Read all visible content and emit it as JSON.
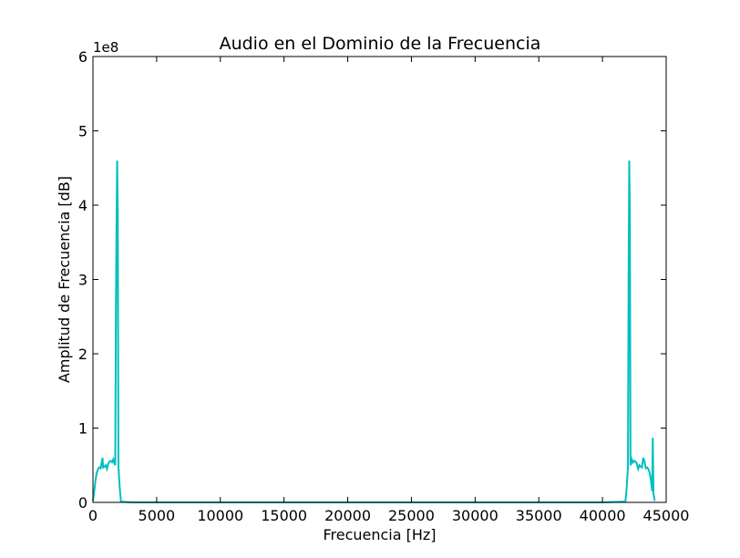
{
  "chart_data": {
    "type": "line",
    "title": "Audio en el Dominio de la Frecuencia",
    "xlabel": "Frecuencia [Hz]",
    "ylabel": "Amplitud de Frecuencia [dB]",
    "xlim": [
      0,
      45000
    ],
    "ylim": [
      0,
      6
    ],
    "y_multiplier_label": "1e8",
    "x_ticks": [
      0,
      5000,
      10000,
      15000,
      20000,
      25000,
      30000,
      35000,
      40000,
      45000
    ],
    "x_tick_labels": [
      "0",
      "5000",
      "10000",
      "15000",
      "20000",
      "25000",
      "30000",
      "35000",
      "40000",
      "45000"
    ],
    "y_ticks": [
      0,
      1,
      2,
      3,
      4,
      5,
      6
    ],
    "y_tick_labels": [
      "0",
      "1",
      "2",
      "3",
      "4",
      "5",
      "6"
    ],
    "grid": false,
    "line_color": "#00bfbf",
    "series": [
      {
        "x": [
          0,
          100,
          200,
          300,
          400,
          500,
          600,
          700,
          750,
          800,
          900,
          1000,
          1100,
          1200,
          1300,
          1400,
          1500,
          1600,
          1700,
          1750,
          1800,
          1850,
          1900,
          1950,
          2000,
          2100,
          2200,
          3000,
          10000,
          20000,
          30000,
          40000,
          41800,
          41900,
          42000,
          42050,
          42100,
          42150,
          42200,
          42250,
          42300,
          42400,
          42500,
          42600,
          42700,
          42800,
          42900,
          43000,
          43100,
          43200,
          43300,
          43400,
          43500,
          43600,
          43700,
          43800,
          43900,
          43950,
          44000,
          44100
        ],
        "y": [
          0.02,
          0.15,
          0.3,
          0.4,
          0.45,
          0.47,
          0.46,
          0.55,
          0.6,
          0.47,
          0.48,
          0.5,
          0.45,
          0.52,
          0.55,
          0.56,
          0.54,
          0.58,
          0.52,
          0.5,
          2.5,
          3.7,
          4.6,
          3.85,
          0.48,
          0.2,
          0.01,
          0.0,
          0.0,
          0.0,
          0.0,
          0.0,
          0.01,
          0.2,
          0.48,
          3.05,
          4.6,
          3.85,
          0.5,
          0.52,
          0.58,
          0.54,
          0.56,
          0.55,
          0.52,
          0.45,
          0.5,
          0.48,
          0.47,
          0.6,
          0.55,
          0.46,
          0.47,
          0.45,
          0.4,
          0.3,
          0.15,
          0.87,
          0.12,
          0.02
        ]
      }
    ]
  }
}
